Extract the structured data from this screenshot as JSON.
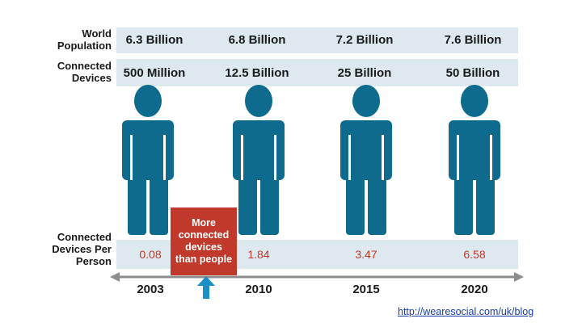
{
  "chart_data": {
    "type": "table",
    "categories": [
      "2003",
      "2010",
      "2015",
      "2020"
    ],
    "rows": [
      {
        "label": "World Population",
        "values": [
          "6.3 Billion",
          "6.8 Billion",
          "7.2 Billion",
          "7.6 Billion"
        ]
      },
      {
        "label": "Connected Devices",
        "values": [
          "500 Million",
          "12.5 Billion",
          "25 Billion",
          "50 Billion"
        ]
      },
      {
        "label": "Connected Devices Per Person",
        "values": [
          "0.08",
          "1.84",
          "3.47",
          "6.58"
        ]
      }
    ],
    "annotation": "More connected devices than people",
    "source": "http://wearesocial.com/uk/blog"
  },
  "colors": {
    "figure": "#0f6b8e",
    "band": "#dde9ef",
    "callout": "#c0392b",
    "ratio": "#c0392b",
    "axis": "#8c8c8c",
    "arrow": "#1a8fc4"
  },
  "icons": [
    "person-icon",
    "up-arrow-icon",
    "timeline-arrow-icon"
  ]
}
